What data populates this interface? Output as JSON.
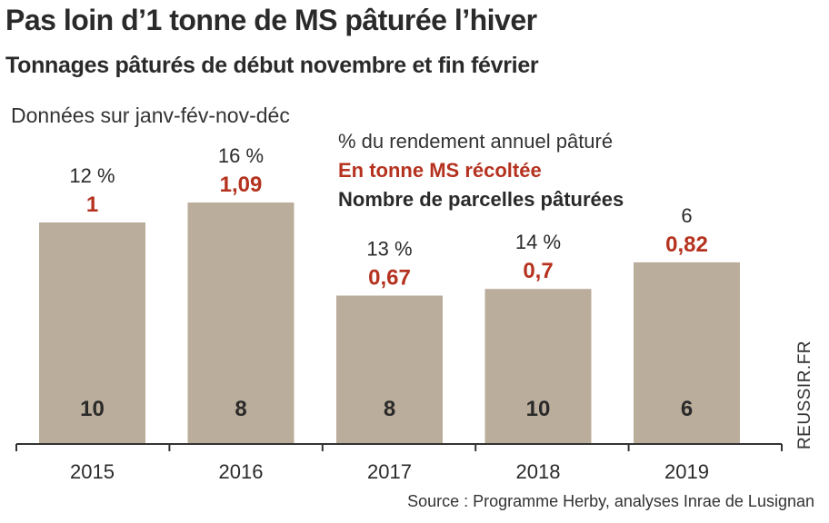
{
  "title": "Pas loin d’1 tonne de MS pâturée l’hiver",
  "subtitle": "Tonnages pâturés de début novembre et fin février",
  "note": "Données sur janv-fév-nov-déc",
  "legend": {
    "percent": "% du rendement annuel pâturé",
    "tonnage": "En tonne MS récoltée",
    "parcels": "Nombre de parcelles pâturées"
  },
  "source": "Source : Programme Herby, analyses Inrae de Lusignan",
  "watermark": "REUSSIR.FR",
  "colors": {
    "bar": "#bbad9b",
    "tonnage": "#b5321f",
    "axis": "#333333",
    "text": "#2a2a2a"
  },
  "chart_data": {
    "type": "bar",
    "categories": [
      "2015",
      "2016",
      "2017",
      "2018",
      "2019"
    ],
    "values": [
      1,
      1.09,
      0.67,
      0.7,
      0.82
    ],
    "value_labels": [
      "1",
      "1,09",
      "0,67",
      "0,7",
      "0,82"
    ],
    "percent_labels": [
      "12 %",
      "16 %",
      "13 %",
      "14 %",
      "6"
    ],
    "parcel_counts": [
      "10",
      "8",
      "8",
      "10",
      "6"
    ],
    "ylim": [
      0,
      1.3
    ],
    "grid": false,
    "legend_position": "top-center"
  }
}
